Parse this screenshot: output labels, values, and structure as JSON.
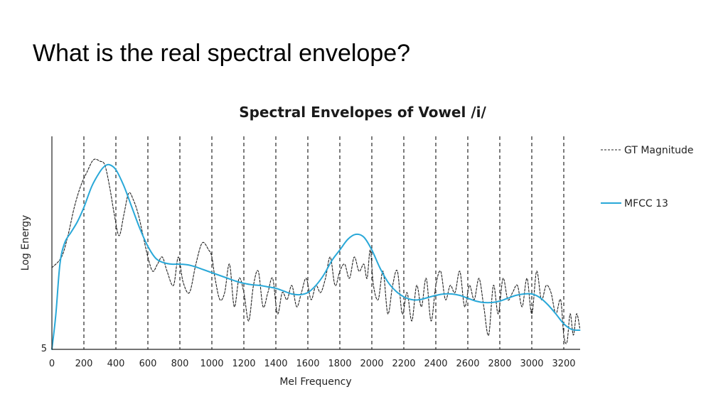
{
  "slide": {
    "title": "What is the real spectral envelope?"
  },
  "chart_data": {
    "type": "line",
    "title": "Spectral Envelopes of Vowel /i/",
    "xlabel": "Mel Frequency",
    "ylabel": "Log Energy",
    "xlim": [
      0,
      3300
    ],
    "ylim": [
      5,
      35
    ],
    "x_ticks": [
      0,
      200,
      400,
      600,
      800,
      1000,
      1200,
      1400,
      1600,
      1800,
      2000,
      2200,
      2400,
      2600,
      2800,
      3000,
      3200
    ],
    "y_tick_labels": [
      {
        "value": 5,
        "label": "5"
      }
    ],
    "vertical_gridlines": [
      200,
      400,
      600,
      800,
      1000,
      1200,
      1400,
      1600,
      1800,
      2000,
      2200,
      2400,
      2600,
      2800,
      3000,
      3200
    ],
    "grid_style": "dashed-vertical",
    "legend_position": "right",
    "series": [
      {
        "name": "GT Magnitude",
        "style": "dashed",
        "color": "#222222",
        "x": [
          0,
          60,
          100,
          140,
          180,
          220,
          260,
          300,
          330,
          360,
          390,
          420,
          450,
          480,
          510,
          540,
          570,
          600,
          630,
          660,
          690,
          720,
          760,
          790,
          820,
          860,
          900,
          940,
          980,
          1000,
          1020,
          1050,
          1080,
          1110,
          1140,
          1170,
          1200,
          1230,
          1260,
          1290,
          1320,
          1350,
          1380,
          1410,
          1440,
          1470,
          1500,
          1530,
          1560,
          1590,
          1620,
          1650,
          1680,
          1710,
          1740,
          1770,
          1800,
          1830,
          1860,
          1890,
          1920,
          1950,
          1970,
          1990,
          2010,
          2040,
          2070,
          2100,
          2130,
          2160,
          2190,
          2220,
          2250,
          2280,
          2310,
          2340,
          2370,
          2400,
          2430,
          2460,
          2490,
          2520,
          2550,
          2580,
          2610,
          2640,
          2670,
          2700,
          2730,
          2760,
          2790,
          2820,
          2850,
          2880,
          2910,
          2940,
          2970,
          3000,
          3030,
          3060,
          3090,
          3120,
          3150,
          3180,
          3200,
          3220,
          3240,
          3260,
          3280,
          3300
        ],
        "y": [
          16.5,
          18,
          21,
          25,
          28,
          30,
          31.7,
          31.5,
          31,
          28,
          24,
          21,
          24,
          27,
          26,
          24,
          21,
          18,
          16,
          17,
          18,
          16,
          14,
          18,
          14.5,
          13,
          17,
          20,
          19,
          18,
          15,
          12,
          13,
          17,
          11,
          15,
          13,
          9,
          14,
          16,
          11,
          13,
          15,
          10,
          13,
          12,
          14,
          11,
          13,
          15,
          12,
          14,
          13,
          15,
          18,
          14,
          16,
          17,
          15,
          18,
          16,
          17,
          15,
          19,
          14,
          12,
          16,
          10,
          14,
          16,
          10,
          13,
          9,
          14,
          11,
          15,
          9,
          14,
          16,
          12,
          14,
          13,
          16,
          11,
          14,
          12,
          15,
          11,
          7,
          14,
          10,
          15,
          12,
          13,
          14,
          11,
          15,
          10,
          16,
          12,
          14,
          13,
          10,
          12,
          7,
          6,
          10,
          7,
          10,
          8
        ]
      },
      {
        "name": "MFCC 13",
        "style": "solid",
        "color": "#29a8d8",
        "x": [
          0,
          25,
          50,
          80,
          120,
          160,
          200,
          250,
          300,
          330,
          360,
          400,
          450,
          500,
          550,
          600,
          650,
          700,
          750,
          800,
          850,
          900,
          950,
          1000,
          1050,
          1100,
          1150,
          1200,
          1250,
          1300,
          1350,
          1400,
          1450,
          1500,
          1550,
          1600,
          1650,
          1700,
          1750,
          1800,
          1850,
          1900,
          1950,
          2000,
          2050,
          2100,
          2150,
          2200,
          2250,
          2300,
          2350,
          2400,
          2450,
          2500,
          2550,
          2600,
          2650,
          2700,
          2750,
          2800,
          2850,
          2900,
          2950,
          3000,
          3050,
          3100,
          3150,
          3200,
          3250,
          3300
        ],
        "y": [
          4,
          10,
          17,
          20,
          21.5,
          23,
          25,
          28,
          30,
          30.8,
          31,
          30.3,
          28,
          25,
          22,
          19.5,
          17.8,
          17.2,
          17,
          17,
          16.9,
          16.6,
          16.2,
          15.8,
          15.4,
          15,
          14.6,
          14.3,
          14.1,
          14,
          13.8,
          13.6,
          13.2,
          12.8,
          12.7,
          13,
          14,
          15.5,
          17.5,
          19,
          20.5,
          21.2,
          20.8,
          19,
          16.5,
          14.5,
          13.2,
          12.4,
          12,
          12,
          12.3,
          12.6,
          12.8,
          12.8,
          12.6,
          12.2,
          11.8,
          11.6,
          11.6,
          11.8,
          12.2,
          12.6,
          12.8,
          12.8,
          12.3,
          11.3,
          10,
          8.6,
          7.8,
          7.7
        ]
      }
    ]
  }
}
